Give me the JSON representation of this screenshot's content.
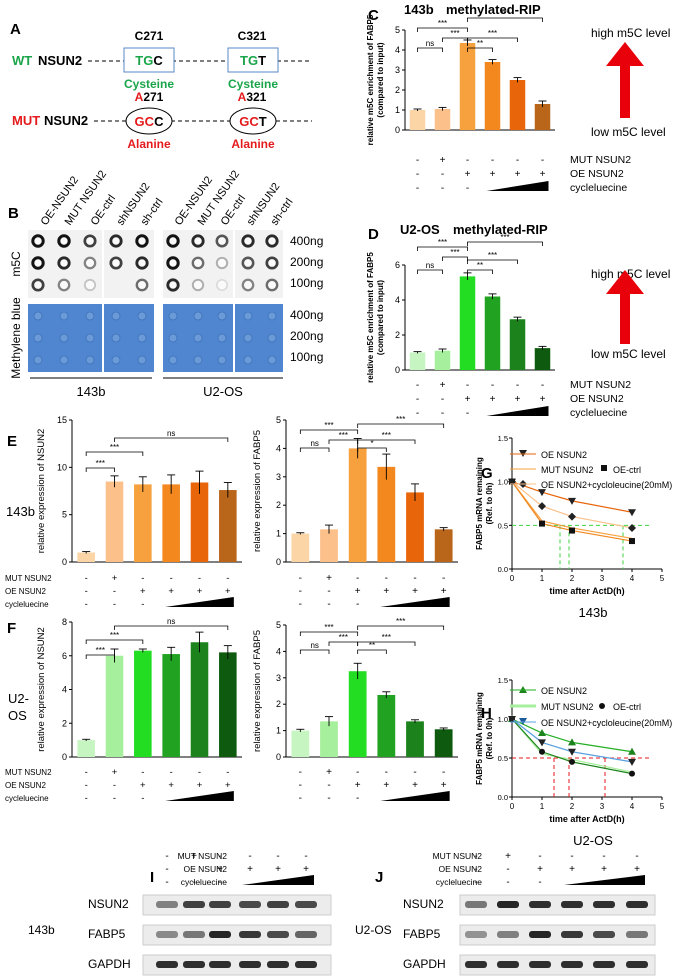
{
  "colors": {
    "green_label": "#1aa54a",
    "red_label": "#e41a1c",
    "orange": [
      "#fcd5a6",
      "#fcc08a",
      "#f6a13e",
      "#f2881e",
      "#e8650a",
      "#b9651a"
    ],
    "green": [
      "#c7f5c1",
      "#a6ef9c",
      "#22dd22",
      "#21a321",
      "#1c821c",
      "#0e5a0e"
    ],
    "membrane_blue": "#4f86cf",
    "gapdh_red": "#e06860",
    "gapdh_green": "#22a022"
  },
  "panel_A": {
    "label": "A",
    "wt_prefix": "WT",
    "wt_gene": "NSUN2",
    "mut_prefix": "MUT",
    "mut_gene": "NSUN2",
    "wt_site1": "C271",
    "wt_site2": "C321",
    "wt_codon1": [
      "T",
      "G",
      "C"
    ],
    "wt_codon2": [
      "T",
      "G",
      "T"
    ],
    "wt_aa1": "Cysteine",
    "wt_aa2": "Cysteine",
    "mut_site1_a": "A",
    "mut_site1_b": "271",
    "mut_site2_a": "A",
    "mut_site2_b": "321",
    "mut_codon1": [
      "G",
      "C",
      "C"
    ],
    "mut_codon2": [
      "G",
      "C",
      "T"
    ],
    "mut_aa1": "Alanine",
    "mut_aa2": "Alanine"
  },
  "panel_B": {
    "label": "B",
    "lanes_143b": [
      "OE-NSUN2",
      "MUT NSUN2",
      "OE-ctrl",
      "shNSUN2",
      "sh-ctrl"
    ],
    "lanes_u2os": [
      "OE-NSUN2",
      "MUT NSUN2",
      "OE-ctrl",
      "shNSUN2",
      "sh-ctrl"
    ],
    "m5c_label": "m5C",
    "mb_label": "Methylene blue",
    "amounts": [
      "400ng",
      "200ng",
      "100ng"
    ],
    "amounts_mb": [
      "400ng",
      "200ng",
      "100ng"
    ],
    "group1": "143b",
    "group2": "U2-OS"
  },
  "condition_labels": {
    "mut": "MUT NSUN2",
    "oe": "OE NSUN2",
    "cyc": "cycleluecine"
  },
  "signs": {
    "mut": [
      "-",
      "+",
      "-",
      "-",
      "-",
      "-"
    ],
    "oe": [
      "-",
      "-",
      "+",
      "+",
      "+",
      "+"
    ],
    "cyc": [
      "-",
      "-",
      "-"
    ]
  },
  "chart_data": [
    {
      "id": "C",
      "type": "bar",
      "panel_label": "C",
      "title_cell": "143b",
      "title_assay": "methylated-RIP",
      "ylabel": "relative m5C enrichment of FABP5 (compared to input)",
      "ylabel_1": "relative m5C enrichment of FABP5",
      "ylabel_2": "(compared to input)",
      "ylim": [
        0,
        5
      ],
      "yticks": [
        "0",
        "1",
        "2",
        "3",
        "4",
        "5"
      ],
      "values": [
        1.0,
        1.05,
        4.35,
        3.4,
        2.5,
        1.3
      ],
      "errors": [
        0.05,
        0.08,
        0.15,
        0.12,
        0.12,
        0.15
      ],
      "significance": [
        {
          "a": 0,
          "b": 1,
          "t": "ns"
        },
        {
          "a": 0,
          "b": 2,
          "t": "***"
        },
        {
          "a": 1,
          "b": 2,
          "t": "***"
        },
        {
          "a": 2,
          "b": 3,
          "t": "**"
        },
        {
          "a": 2,
          "b": 4,
          "t": "***"
        },
        {
          "a": 2,
          "b": 5,
          "t": "***"
        }
      ],
      "annotation_high": "high m5C level",
      "annotation_low": "low m5C level"
    },
    {
      "id": "D",
      "type": "bar",
      "panel_label": "D",
      "title_cell": "U2-OS",
      "title_assay": "methylated-RIP",
      "ylabel": "relative m5C enrichment of FABP5 (compared to input)",
      "ylabel_1": "relative m5C enrichment of FABP5",
      "ylabel_2": "(compared to input)",
      "ylim": [
        0,
        6
      ],
      "yticks": [
        "0",
        "2",
        "4",
        "6"
      ],
      "values": [
        1.0,
        1.1,
        5.35,
        4.2,
        2.9,
        1.25
      ],
      "errors": [
        0.05,
        0.1,
        0.2,
        0.15,
        0.12,
        0.1
      ],
      "significance": [
        {
          "a": 0,
          "b": 1,
          "t": "ns"
        },
        {
          "a": 0,
          "b": 2,
          "t": "***"
        },
        {
          "a": 1,
          "b": 2,
          "t": "***"
        },
        {
          "a": 2,
          "b": 3,
          "t": "**"
        },
        {
          "a": 2,
          "b": 4,
          "t": "***"
        },
        {
          "a": 2,
          "b": 5,
          "t": "***"
        }
      ],
      "annotation_high": "high m5C level",
      "annotation_low": "low m5C level"
    },
    {
      "id": "E1",
      "type": "bar",
      "panel_label": "E",
      "side_label": "143b",
      "ylabel": "relative expression of NSUN2",
      "ylim": [
        0,
        15
      ],
      "yticks": [
        "0",
        "5",
        "10",
        "15"
      ],
      "values": [
        1.0,
        8.5,
        8.2,
        8.2,
        8.4,
        7.6
      ],
      "errors": [
        0.1,
        0.6,
        0.8,
        1.0,
        1.2,
        0.8
      ],
      "significance": [
        {
          "a": 0,
          "b": 1,
          "t": "***"
        },
        {
          "a": 0,
          "b": 2,
          "t": "***"
        },
        {
          "a": 1,
          "b": 5,
          "t": "ns"
        }
      ]
    },
    {
      "id": "E2",
      "type": "bar",
      "ylabel": "relative expression of FABP5",
      "ylim": [
        0,
        5
      ],
      "yticks": [
        "0",
        "1",
        "2",
        "3",
        "4",
        "5"
      ],
      "values": [
        1.0,
        1.15,
        4.0,
        3.35,
        2.45,
        1.15
      ],
      "errors": [
        0.03,
        0.15,
        0.35,
        0.45,
        0.3,
        0.06
      ],
      "significance": [
        {
          "a": 0,
          "b": 1,
          "t": "ns"
        },
        {
          "a": 0,
          "b": 2,
          "t": "***"
        },
        {
          "a": 1,
          "b": 2,
          "t": "***"
        },
        {
          "a": 2,
          "b": 3,
          "t": "*"
        },
        {
          "a": 2,
          "b": 4,
          "t": "***"
        },
        {
          "a": 2,
          "b": 5,
          "t": "***"
        }
      ]
    },
    {
      "id": "F1",
      "type": "bar",
      "panel_label": "F",
      "side_label_1": "U2-",
      "side_label_2": "OS",
      "ylabel": "relative expression of NSUN2",
      "ylim": [
        0,
        8
      ],
      "yticks": [
        "0",
        "2",
        "4",
        "6",
        "8"
      ],
      "values": [
        1.0,
        6.0,
        6.3,
        6.1,
        6.8,
        6.2
      ],
      "errors": [
        0.05,
        0.4,
        0.1,
        0.4,
        0.6,
        0.4
      ],
      "significance": [
        {
          "a": 0,
          "b": 1,
          "t": "***"
        },
        {
          "a": 0,
          "b": 2,
          "t": "***"
        },
        {
          "a": 1,
          "b": 5,
          "t": "ns"
        }
      ]
    },
    {
      "id": "F2",
      "type": "bar",
      "ylabel": "relative expression of FABP5",
      "ylim": [
        0,
        5
      ],
      "yticks": [
        "0",
        "1",
        "2",
        "3",
        "4",
        "5"
      ],
      "values": [
        1.0,
        1.35,
        3.25,
        2.35,
        1.35,
        1.05
      ],
      "errors": [
        0.05,
        0.18,
        0.3,
        0.12,
        0.06,
        0.05
      ],
      "significance": [
        {
          "a": 0,
          "b": 1,
          "t": "ns"
        },
        {
          "a": 0,
          "b": 2,
          "t": "***"
        },
        {
          "a": 1,
          "b": 2,
          "t": "***"
        },
        {
          "a": 2,
          "b": 3,
          "t": "**"
        },
        {
          "a": 2,
          "b": 4,
          "t": "***"
        },
        {
          "a": 2,
          "b": 5,
          "t": "***"
        }
      ]
    },
    {
      "id": "G",
      "type": "line",
      "panel_label": "G",
      "cell": "143b",
      "ylabel": "FABP5 mRNA remaining (Ref. to 0h)",
      "ylabel_1": "FABP5 mRNA remaining",
      "ylabel_2": "(Ref. to 0h)",
      "xlabel": "time after ActD(h)",
      "xlim": [
        0,
        5
      ],
      "ylim": [
        0,
        1.5
      ],
      "xticks": [
        "0",
        "1",
        "2",
        "3",
        "4",
        "5"
      ],
      "yticks": [
        "0.0",
        "0.5",
        "1.0",
        "1.5"
      ],
      "x": [
        0,
        1,
        2,
        4
      ],
      "half_life": [
        1.6,
        1.9,
        3.7
      ],
      "series": [
        {
          "name": "OE NSUN2",
          "values": [
            1.0,
            0.88,
            0.78,
            0.65
          ],
          "marker": "tri-down",
          "color": "#e8650a"
        },
        {
          "name": "MUT NSUN2",
          "values": [
            1.0,
            0.55,
            0.47,
            0.35
          ],
          "marker": "none",
          "color": "#f6a13e"
        },
        {
          "name": "OE-ctrl",
          "values": [
            1.0,
            0.52,
            0.44,
            0.32
          ],
          "marker": "square",
          "color": "#f2881e"
        },
        {
          "name": "OE NSUN2+cycloleucine(20mM)",
          "values": [
            1.0,
            0.72,
            0.6,
            0.47
          ],
          "marker": "diamond",
          "color": "#fcc08a"
        }
      ]
    },
    {
      "id": "H",
      "type": "line",
      "panel_label": "H",
      "cell": "U2-OS",
      "ylabel": "FABP5 mRNA remaining (Ref. to 0h)",
      "ylabel_1": "FABP5 mRNA remaining",
      "ylabel_2": "(Ref. to 0h)",
      "xlabel": "time after ActD(h)",
      "xlim": [
        0,
        5
      ],
      "ylim": [
        0,
        1.5
      ],
      "xticks": [
        "0",
        "1",
        "2",
        "3",
        "4",
        "5"
      ],
      "yticks": [
        "0.0",
        "0.5",
        "1.0",
        "1.5"
      ],
      "x": [
        0,
        1,
        2,
        4
      ],
      "half_life": [
        1.4,
        1.9,
        3.1
      ],
      "series": [
        {
          "name": "OE NSUN2",
          "values": [
            1.0,
            0.82,
            0.7,
            0.58
          ],
          "marker": "tri-up",
          "color": "#22b022"
        },
        {
          "name": "MUT NSUN2",
          "values": [
            1.0,
            0.55,
            0.48,
            0.32
          ],
          "marker": "none",
          "color": "#a6ef9c"
        },
        {
          "name": "OE-ctrl",
          "values": [
            1.0,
            0.58,
            0.45,
            0.3
          ],
          "marker": "circle",
          "color": "#1c821c"
        },
        {
          "name": "OE NSUN2+cycloleucine(20mM)",
          "values": [
            1.0,
            0.7,
            0.58,
            0.45
          ],
          "marker": "tri-down",
          "color": "#5aa0e0"
        }
      ]
    }
  ],
  "panel_I": {
    "label": "I",
    "cell": "143b",
    "bands": [
      "NSUN2",
      "FABP5",
      "GAPDH"
    ]
  },
  "panel_J": {
    "label": "J",
    "cell": "U2-OS",
    "bands": [
      "NSUN2",
      "FABP5",
      "GAPDH"
    ]
  }
}
